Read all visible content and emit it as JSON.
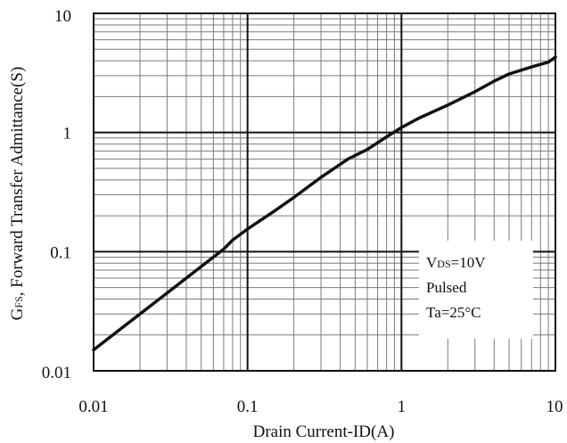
{
  "chart_data": {
    "type": "line",
    "x_scale": "log",
    "y_scale": "log",
    "xlim": [
      0.01,
      10
    ],
    "ylim": [
      0.01,
      10
    ],
    "grid": true,
    "x_ticks": [
      "0.01",
      "0.1",
      "1",
      "10"
    ],
    "y_ticks": [
      "0.01",
      "0.1",
      "1",
      "10"
    ],
    "xlabel": "Drain Current-ID(A)",
    "ylabel": {
      "main_letter": "G",
      "subscript": "FS",
      "rest": ", Forward Transfer Admittance(S)"
    },
    "annotation": {
      "line1_prefix": "V",
      "line1_sub": "DS",
      "line1_rest": "=10V",
      "line2": "Pulsed",
      "line3": "Ta=25°C"
    },
    "series": [
      {
        "x": [
          0.01,
          0.02,
          0.03,
          0.05,
          0.07,
          0.08,
          0.1,
          0.15,
          0.2,
          0.3,
          0.45,
          0.6,
          0.8,
          1.0,
          1.3,
          2.0,
          3.0,
          4.0,
          5.0,
          7.0,
          9.0,
          10.0
        ],
        "y": [
          0.015,
          0.03,
          0.045,
          0.075,
          0.105,
          0.125,
          0.155,
          0.22,
          0.285,
          0.42,
          0.6,
          0.72,
          0.92,
          1.1,
          1.32,
          1.7,
          2.2,
          2.7,
          3.1,
          3.55,
          3.9,
          4.3
        ]
      }
    ],
    "line_color": "#111111"
  }
}
